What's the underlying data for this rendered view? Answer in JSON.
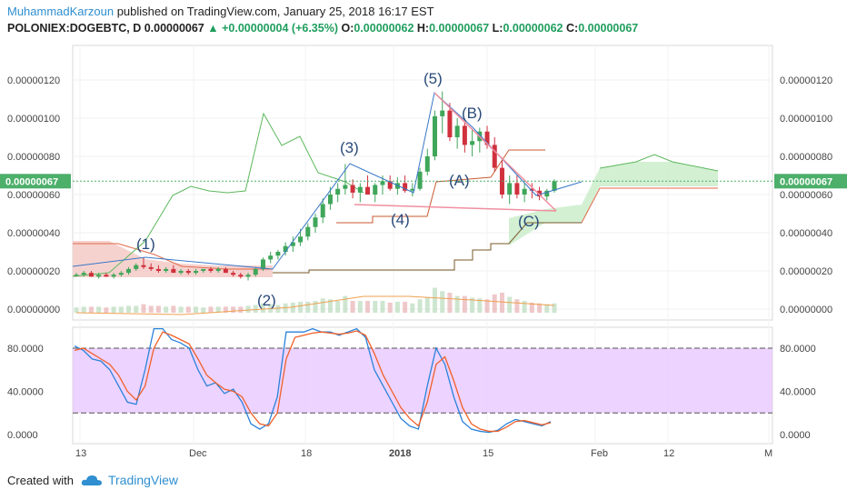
{
  "header": {
    "author": "MuhammadKarzoun",
    "published_text": "published on TradingView.com, January 25, 2018 16:17 EST",
    "symbol": "POLONIEX:DOGEBTC, D",
    "last": "0.00000067",
    "change": "+0.00000004 (+6.35%)",
    "o_label": "O:",
    "o": "0.00000062",
    "h_label": "H:",
    "h": "0.00000067",
    "l_label": "L:",
    "l": "0.00000062",
    "c_label": "C:",
    "c": "0.00000067"
  },
  "footer": {
    "created_with": "Created with",
    "brand": "TradingView"
  },
  "colors": {
    "bull": "#3fa65a",
    "bear": "#d0313d",
    "price_tag": "#4caf6a",
    "wave_line": "#3a78c8",
    "wedge": "#f08fa0",
    "cloud_red": "#f4c7c3",
    "cloud_green": "#c8ecc8",
    "stoch_band": "#e8c8ff",
    "k_line": "#2a82da",
    "d_line": "#f0602a"
  },
  "chart_data": [
    {
      "type": "candlestick",
      "title": "",
      "y_ticks": [
        "0.00000120",
        "0.00000100",
        "0.00000080",
        "0.00000060",
        "0.00000040",
        "0.00000020",
        "0.00000000"
      ],
      "last_price_tag": "0.00000067",
      "x_ticks": [
        "13",
        "Dec",
        "18",
        "2018",
        "15",
        "Feb",
        "12",
        "M"
      ],
      "ylim": [
        0,
        1.3e-06
      ],
      "wave_labels": [
        "(1)",
        "(2)",
        "(3)",
        "(4)",
        "(5)",
        "(A)",
        "(B)",
        "(C)"
      ],
      "candles": [
        {
          "o": 18,
          "h": 19,
          "l": 17,
          "c": 18
        },
        {
          "o": 18,
          "h": 20,
          "l": 17,
          "c": 19
        },
        {
          "o": 19,
          "h": 20,
          "l": 17,
          "c": 17
        },
        {
          "o": 17,
          "h": 19,
          "l": 16,
          "c": 18
        },
        {
          "o": 18,
          "h": 19,
          "l": 17,
          "c": 17
        },
        {
          "o": 17,
          "h": 19,
          "l": 16,
          "c": 18
        },
        {
          "o": 18,
          "h": 20,
          "l": 17,
          "c": 19
        },
        {
          "o": 19,
          "h": 22,
          "l": 18,
          "c": 21
        },
        {
          "o": 21,
          "h": 24,
          "l": 20,
          "c": 23
        },
        {
          "o": 23,
          "h": 27,
          "l": 21,
          "c": 22
        },
        {
          "o": 22,
          "h": 24,
          "l": 20,
          "c": 21
        },
        {
          "o": 21,
          "h": 23,
          "l": 19,
          "c": 20
        },
        {
          "o": 20,
          "h": 22,
          "l": 19,
          "c": 21
        },
        {
          "o": 21,
          "h": 23,
          "l": 19,
          "c": 19
        },
        {
          "o": 19,
          "h": 21,
          "l": 18,
          "c": 20
        },
        {
          "o": 20,
          "h": 21,
          "l": 18,
          "c": 19
        },
        {
          "o": 19,
          "h": 21,
          "l": 18,
          "c": 20
        },
        {
          "o": 20,
          "h": 21,
          "l": 19,
          "c": 21
        },
        {
          "o": 21,
          "h": 22,
          "l": 19,
          "c": 20
        },
        {
          "o": 20,
          "h": 22,
          "l": 19,
          "c": 21
        },
        {
          "o": 21,
          "h": 22,
          "l": 19,
          "c": 19
        },
        {
          "o": 19,
          "h": 20,
          "l": 17,
          "c": 18
        },
        {
          "o": 18,
          "h": 19,
          "l": 16,
          "c": 17
        },
        {
          "o": 17,
          "h": 19,
          "l": 15,
          "c": 18
        },
        {
          "o": 18,
          "h": 22,
          "l": 17,
          "c": 21
        },
        {
          "o": 21,
          "h": 27,
          "l": 20,
          "c": 26
        },
        {
          "o": 26,
          "h": 30,
          "l": 24,
          "c": 28
        },
        {
          "o": 28,
          "h": 31,
          "l": 26,
          "c": 30
        },
        {
          "o": 30,
          "h": 35,
          "l": 28,
          "c": 33
        },
        {
          "o": 33,
          "h": 38,
          "l": 30,
          "c": 35
        },
        {
          "o": 35,
          "h": 42,
          "l": 33,
          "c": 38
        },
        {
          "o": 38,
          "h": 45,
          "l": 36,
          "c": 43
        },
        {
          "o": 43,
          "h": 50,
          "l": 40,
          "c": 48
        },
        {
          "o": 48,
          "h": 58,
          "l": 45,
          "c": 55
        },
        {
          "o": 55,
          "h": 64,
          "l": 52,
          "c": 60
        },
        {
          "o": 60,
          "h": 66,
          "l": 56,
          "c": 63
        },
        {
          "o": 63,
          "h": 76,
          "l": 60,
          "c": 65
        },
        {
          "o": 65,
          "h": 68,
          "l": 58,
          "c": 61
        },
        {
          "o": 61,
          "h": 66,
          "l": 56,
          "c": 64
        },
        {
          "o": 64,
          "h": 70,
          "l": 60,
          "c": 60
        },
        {
          "o": 60,
          "h": 66,
          "l": 56,
          "c": 65
        },
        {
          "o": 65,
          "h": 70,
          "l": 60,
          "c": 67
        },
        {
          "o": 67,
          "h": 70,
          "l": 62,
          "c": 63
        },
        {
          "o": 63,
          "h": 69,
          "l": 60,
          "c": 66
        },
        {
          "o": 66,
          "h": 70,
          "l": 61,
          "c": 62
        },
        {
          "o": 62,
          "h": 66,
          "l": 59,
          "c": 63
        },
        {
          "o": 63,
          "h": 74,
          "l": 62,
          "c": 72
        },
        {
          "o": 72,
          "h": 84,
          "l": 70,
          "c": 80
        },
        {
          "o": 80,
          "h": 104,
          "l": 78,
          "c": 101
        },
        {
          "o": 101,
          "h": 114,
          "l": 92,
          "c": 104
        },
        {
          "o": 104,
          "h": 108,
          "l": 88,
          "c": 90
        },
        {
          "o": 90,
          "h": 100,
          "l": 84,
          "c": 96
        },
        {
          "o": 96,
          "h": 98,
          "l": 82,
          "c": 86
        },
        {
          "o": 86,
          "h": 94,
          "l": 80,
          "c": 88
        },
        {
          "o": 88,
          "h": 95,
          "l": 82,
          "c": 93
        },
        {
          "o": 93,
          "h": 96,
          "l": 84,
          "c": 86
        },
        {
          "o": 86,
          "h": 90,
          "l": 72,
          "c": 74
        },
        {
          "o": 74,
          "h": 78,
          "l": 58,
          "c": 60
        },
        {
          "o": 60,
          "h": 70,
          "l": 55,
          "c": 66
        },
        {
          "o": 66,
          "h": 70,
          "l": 58,
          "c": 60
        },
        {
          "o": 60,
          "h": 66,
          "l": 56,
          "c": 63
        },
        {
          "o": 63,
          "h": 66,
          "l": 58,
          "c": 62
        },
        {
          "o": 62,
          "h": 64,
          "l": 57,
          "c": 59
        },
        {
          "o": 59,
          "h": 63,
          "l": 57,
          "c": 62
        },
        {
          "o": 62,
          "h": 68,
          "l": 61,
          "c": 67
        }
      ]
    },
    {
      "type": "line",
      "title": "",
      "y_ticks": [
        "80.0000",
        "40.0000",
        "0.0000"
      ],
      "ylim": [
        -10,
        100
      ],
      "bands": [
        20,
        80
      ],
      "series": [
        {
          "values": [
            82,
            78,
            70,
            68,
            60,
            45,
            30,
            28,
            60,
            98,
            98,
            88,
            85,
            80,
            60,
            45,
            48,
            38,
            42,
            30,
            10,
            5,
            10,
            35,
            95,
            95,
            95,
            98,
            95,
            95,
            92,
            95,
            98,
            90,
            60,
            45,
            30,
            15,
            8,
            5,
            45,
            80,
            65,
            35,
            12,
            5,
            3,
            2,
            4,
            10,
            14,
            12,
            10,
            8,
            12
          ]
        },
        {
          "values": [
            78,
            80,
            75,
            70,
            65,
            55,
            40,
            32,
            45,
            80,
            95,
            92,
            88,
            84,
            70,
            55,
            48,
            42,
            40,
            35,
            20,
            10,
            8,
            20,
            70,
            90,
            92,
            94,
            95,
            94,
            93,
            94,
            96,
            92,
            75,
            55,
            40,
            25,
            15,
            8,
            30,
            65,
            72,
            50,
            25,
            10,
            5,
            3,
            3,
            7,
            12,
            13,
            11,
            9,
            11
          ]
        }
      ]
    }
  ]
}
